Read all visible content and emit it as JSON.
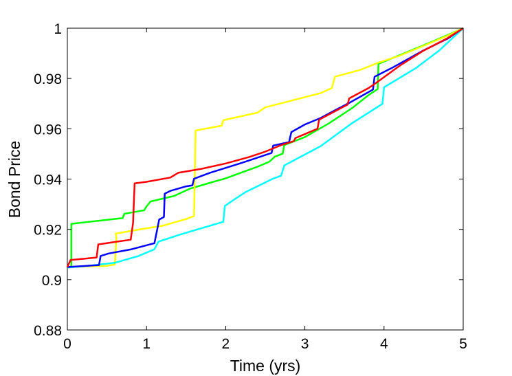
{
  "chart_data": {
    "type": "line",
    "title": "",
    "xlabel": "Time (yrs)",
    "ylabel": "Bond Price",
    "xlim": [
      0,
      5
    ],
    "ylim": [
      0.88,
      1.0
    ],
    "xticks": [
      0,
      1,
      2,
      3,
      4,
      5
    ],
    "xtick_labels": [
      "0",
      "1",
      "2",
      "3",
      "4",
      "5"
    ],
    "yticks": [
      0.88,
      0.9,
      0.92,
      0.94,
      0.96,
      0.98,
      1.0
    ],
    "ytick_labels": [
      "0.88",
      "0.9",
      "0.92",
      "0.94",
      "0.96",
      "0.98",
      "1"
    ],
    "grid": false,
    "series": [
      {
        "color": "#00ff00",
        "points": [
          [
            0,
            0.905
          ],
          [
            0.05,
            0.905
          ],
          [
            0.05,
            0.9222
          ],
          [
            0.7,
            0.9245
          ],
          [
            0.72,
            0.9262
          ],
          [
            0.9,
            0.9272
          ],
          [
            0.97,
            0.9276
          ],
          [
            1.0,
            0.9291
          ],
          [
            1.05,
            0.9311
          ],
          [
            1.35,
            0.9333
          ],
          [
            1.55,
            0.9362
          ],
          [
            1.8,
            0.9385
          ],
          [
            2.0,
            0.9403
          ],
          [
            2.4,
            0.9449
          ],
          [
            2.55,
            0.9469
          ],
          [
            2.62,
            0.9489
          ],
          [
            2.72,
            0.9501
          ],
          [
            2.74,
            0.9535
          ],
          [
            3.0,
            0.9567
          ],
          [
            3.3,
            0.9621
          ],
          [
            3.6,
            0.9683
          ],
          [
            3.8,
            0.9733
          ],
          [
            3.92,
            0.9758
          ],
          [
            3.93,
            0.9858
          ],
          [
            4.2,
            0.9893
          ],
          [
            4.5,
            0.9932
          ],
          [
            4.8,
            0.9972
          ],
          [
            5.0,
            1.0
          ]
        ]
      },
      {
        "color": "#ffff00",
        "points": [
          [
            0,
            0.905
          ],
          [
            0.5,
            0.9055
          ],
          [
            0.6,
            0.906
          ],
          [
            0.62,
            0.9168
          ],
          [
            0.61,
            0.9183
          ],
          [
            0.9,
            0.9199
          ],
          [
            1.2,
            0.9214
          ],
          [
            1.5,
            0.9241
          ],
          [
            1.6,
            0.9253
          ],
          [
            1.62,
            0.9593
          ],
          [
            1.95,
            0.9612
          ],
          [
            1.97,
            0.9634
          ],
          [
            2.4,
            0.9664
          ],
          [
            2.5,
            0.9685
          ],
          [
            3.2,
            0.9742
          ],
          [
            3.34,
            0.9762
          ],
          [
            3.38,
            0.9807
          ],
          [
            3.7,
            0.9834
          ],
          [
            3.92,
            0.9862
          ],
          [
            4.2,
            0.9891
          ],
          [
            4.5,
            0.993
          ],
          [
            4.8,
            0.997
          ],
          [
            5.0,
            1.0
          ]
        ]
      },
      {
        "color": "#00ffff",
        "points": [
          [
            0,
            0.9048
          ],
          [
            0.3,
            0.9056
          ],
          [
            0.6,
            0.9067
          ],
          [
            0.9,
            0.9094
          ],
          [
            1.1,
            0.9121
          ],
          [
            1.15,
            0.9151
          ],
          [
            1.4,
            0.9177
          ],
          [
            1.7,
            0.9205
          ],
          [
            1.97,
            0.923
          ],
          [
            1.99,
            0.9293
          ],
          [
            2.1,
            0.9317
          ],
          [
            2.25,
            0.9348
          ],
          [
            2.6,
            0.9402
          ],
          [
            2.7,
            0.9413
          ],
          [
            2.74,
            0.9454
          ],
          [
            3.2,
            0.9531
          ],
          [
            3.6,
            0.9623
          ],
          [
            3.98,
            0.9699
          ],
          [
            4.0,
            0.9765
          ],
          [
            4.4,
            0.9841
          ],
          [
            4.7,
            0.9912
          ],
          [
            5.0,
            1.0
          ]
        ]
      },
      {
        "color": "#0000ff",
        "points": [
          [
            0,
            0.905
          ],
          [
            0.4,
            0.9058
          ],
          [
            0.42,
            0.9094
          ],
          [
            0.52,
            0.9104
          ],
          [
            0.8,
            0.912
          ],
          [
            1.1,
            0.9145
          ],
          [
            1.13,
            0.9192
          ],
          [
            1.16,
            0.9239
          ],
          [
            1.22,
            0.9249
          ],
          [
            1.23,
            0.9342
          ],
          [
            1.3,
            0.9353
          ],
          [
            1.5,
            0.9371
          ],
          [
            1.58,
            0.9375
          ],
          [
            1.6,
            0.9401
          ],
          [
            1.8,
            0.9425
          ],
          [
            2.2,
            0.9464
          ],
          [
            2.58,
            0.9504
          ],
          [
            2.6,
            0.9533
          ],
          [
            2.8,
            0.9547
          ],
          [
            2.83,
            0.9587
          ],
          [
            3.0,
            0.9617
          ],
          [
            3.2,
            0.9643
          ],
          [
            3.4,
            0.9677
          ],
          [
            3.55,
            0.9701
          ],
          [
            3.86,
            0.9756
          ],
          [
            3.88,
            0.9807
          ],
          [
            4.1,
            0.9842
          ],
          [
            4.5,
            0.9912
          ],
          [
            4.8,
            0.9958
          ],
          [
            5.0,
            1.0
          ]
        ]
      },
      {
        "color": "#ff0000",
        "points": [
          [
            0,
            0.905
          ],
          [
            0.04,
            0.9078
          ],
          [
            0.37,
            0.9088
          ],
          [
            0.39,
            0.914
          ],
          [
            0.6,
            0.915
          ],
          [
            0.8,
            0.9159
          ],
          [
            0.83,
            0.9225
          ],
          [
            0.85,
            0.9383
          ],
          [
            1.0,
            0.9389
          ],
          [
            1.3,
            0.9406
          ],
          [
            1.4,
            0.9425
          ],
          [
            1.7,
            0.9441
          ],
          [
            2.0,
            0.9462
          ],
          [
            2.3,
            0.9488
          ],
          [
            2.5,
            0.9509
          ],
          [
            2.7,
            0.9535
          ],
          [
            2.86,
            0.9551
          ],
          [
            2.88,
            0.9563
          ],
          [
            3.16,
            0.96
          ],
          [
            3.18,
            0.9636
          ],
          [
            3.4,
            0.9673
          ],
          [
            3.54,
            0.9696
          ],
          [
            3.56,
            0.9721
          ],
          [
            3.8,
            0.9761
          ],
          [
            3.88,
            0.9778
          ],
          [
            4.2,
            0.9851
          ],
          [
            4.5,
            0.9911
          ],
          [
            4.8,
            0.996
          ],
          [
            5.0,
            1.0
          ]
        ]
      }
    ]
  }
}
